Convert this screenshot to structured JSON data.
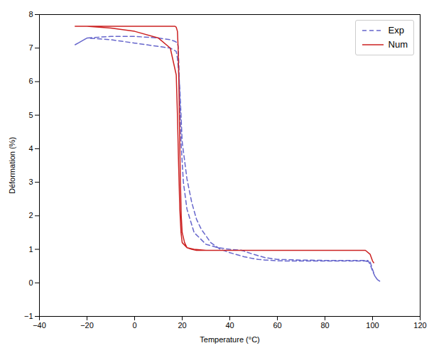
{
  "chart_data": {
    "type": "line",
    "xlabel": "Temperature (°C)",
    "ylabel": "Déformation (%)",
    "xlim": [
      -40,
      120
    ],
    "ylim": [
      -1,
      8
    ],
    "xticks": [
      -40,
      -20,
      0,
      20,
      40,
      60,
      80,
      100,
      120
    ],
    "yticks": [
      -1,
      0,
      1,
      2,
      3,
      4,
      5,
      6,
      7,
      8
    ],
    "grid": false,
    "legend": "upper right",
    "series": [
      {
        "name": "Exp",
        "color": "#6666cc",
        "line_style": "dashed",
        "x": [
          -25,
          -20,
          -10,
          0,
          10,
          15,
          17,
          18,
          18.3,
          18.6,
          19.0,
          19.5,
          20.5,
          22,
          25,
          30,
          35,
          40,
          45,
          50,
          55,
          60,
          70,
          80,
          90,
          95,
          98,
          99,
          100,
          101,
          102,
          103,
          103,
          102,
          101,
          100,
          99,
          97,
          95,
          90,
          85,
          80,
          75,
          70,
          65,
          60,
          55,
          52,
          50,
          48,
          46,
          44,
          42,
          40,
          38,
          36,
          34,
          32,
          30,
          28,
          26,
          24,
          22,
          20,
          19.5,
          19.0,
          18.5,
          18.0,
          17.5,
          15,
          10,
          5,
          0,
          -10,
          -20,
          -25
        ],
        "values": [
          7.1,
          7.3,
          7.35,
          7.35,
          7.3,
          7.25,
          7.2,
          7.15,
          7.05,
          6.5,
          5.5,
          4.2,
          3.0,
          2.2,
          1.5,
          1.15,
          1.05,
          1.0,
          0.97,
          0.85,
          0.75,
          0.7,
          0.68,
          0.67,
          0.67,
          0.67,
          0.67,
          0.55,
          0.35,
          0.2,
          0.1,
          0.05,
          0.05,
          0.1,
          0.2,
          0.4,
          0.62,
          0.65,
          0.65,
          0.65,
          0.65,
          0.65,
          0.65,
          0.65,
          0.65,
          0.66,
          0.68,
          0.7,
          0.72,
          0.75,
          0.78,
          0.82,
          0.86,
          0.9,
          0.95,
          1.0,
          1.1,
          1.2,
          1.4,
          1.6,
          1.9,
          2.4,
          3.1,
          4.2,
          5.0,
          5.8,
          6.3,
          6.7,
          6.9,
          7.0,
          7.05,
          7.1,
          7.15,
          7.25,
          7.3,
          7.1
        ]
      },
      {
        "name": "Num",
        "color": "#cc2222",
        "line_style": "solid",
        "x": [
          -25,
          -20,
          -10,
          0,
          10,
          15,
          17,
          17.5,
          18.0,
          18.3,
          18.6,
          18.9,
          19.2,
          19.6,
          20,
          21,
          22,
          25,
          30,
          35,
          40,
          45,
          50,
          55,
          60,
          70,
          80,
          90,
          95,
          97,
          99,
          100,
          100.5,
          100.5,
          100,
          99,
          97,
          95,
          90,
          80,
          70,
          60,
          55,
          52,
          50,
          48,
          46,
          44,
          42,
          40,
          38,
          36,
          34,
          32,
          30,
          28,
          26,
          24,
          22,
          20,
          19.5,
          19.0,
          18.5,
          18.0,
          17.5,
          15,
          10,
          0,
          -10,
          -20,
          -25
        ],
        "values": [
          7.65,
          7.65,
          7.65,
          7.65,
          7.65,
          7.65,
          7.65,
          7.62,
          7.5,
          7.0,
          6.0,
          4.5,
          3.2,
          2.0,
          1.5,
          1.2,
          1.05,
          1.0,
          0.97,
          0.97,
          0.97,
          0.97,
          0.97,
          0.97,
          0.97,
          0.97,
          0.97,
          0.97,
          0.97,
          0.97,
          0.85,
          0.65,
          0.6,
          0.6,
          0.65,
          0.85,
          0.97,
          0.97,
          0.97,
          0.97,
          0.97,
          0.97,
          0.97,
          0.97,
          0.97,
          0.97,
          0.97,
          0.97,
          0.97,
          0.97,
          0.97,
          0.97,
          0.97,
          0.97,
          0.97,
          0.97,
          0.97,
          1.0,
          1.05,
          1.2,
          1.5,
          2.2,
          3.5,
          5.0,
          6.2,
          7.0,
          7.3,
          7.5,
          7.6,
          7.65,
          7.65
        ]
      }
    ]
  }
}
